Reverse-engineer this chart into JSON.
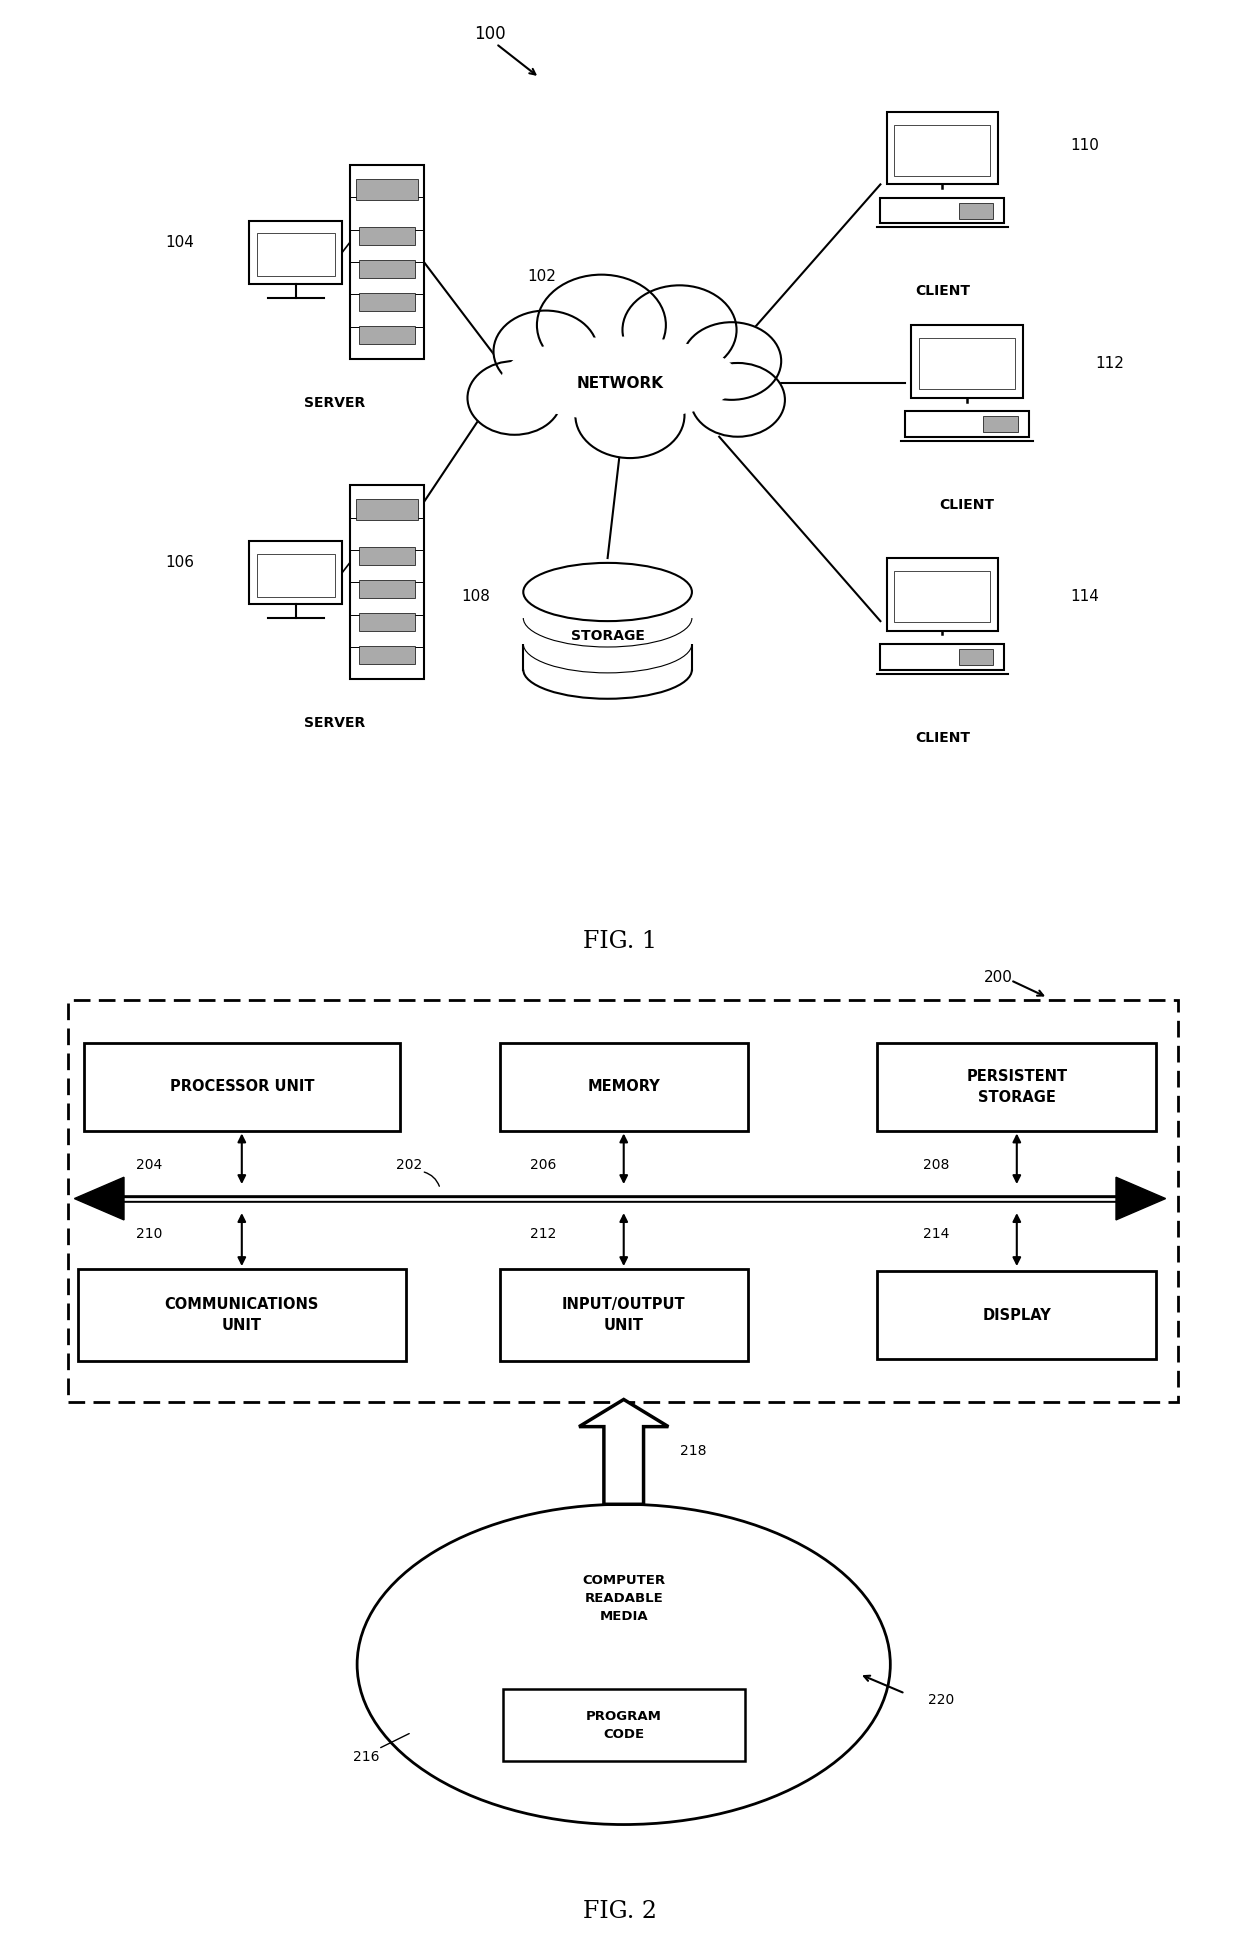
{
  "fig1": {
    "title": "FIG. 1",
    "label_100": "100",
    "label_102": "102",
    "label_104": "104",
    "label_106": "106",
    "label_108": "108",
    "label_110": "110",
    "label_112": "112",
    "label_114": "114",
    "network_label": "NETWORK",
    "storage_label": "STORAGE",
    "server_label": "SERVER",
    "client_label": "CLIENT"
  },
  "fig2": {
    "title": "FIG. 2",
    "label_200": "200",
    "label_202": "202",
    "label_204": "204",
    "label_206": "206",
    "label_208": "208",
    "label_210": "210",
    "label_212": "212",
    "label_214": "214",
    "label_216": "216",
    "label_218": "218",
    "label_220": "220"
  },
  "bg_color": "#ffffff",
  "fg_color": "#000000"
}
